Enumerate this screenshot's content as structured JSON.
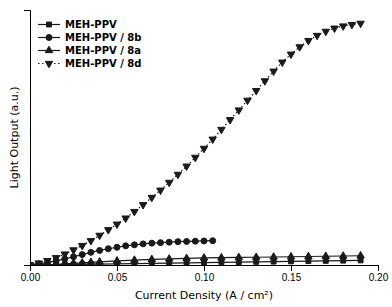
{
  "chart_data": {
    "type": "line",
    "x_label": "Current Density (A / cm²)",
    "y_label": "Light Output (a.u.)",
    "xlim": [
      0.0,
      0.2
    ],
    "xticks": [
      {
        "value": 0.0,
        "label": "0.00"
      },
      0.05,
      {
        "value": 0.1,
        "label": "0.10"
      },
      0.15,
      {
        "value": 0.2,
        "label": "0.20"
      }
    ],
    "ylim": [
      0,
      1.05
    ],
    "tick_labels": "x",
    "legend": "upper left",
    "series": [
      {
        "name": "MEH-PPV",
        "marker": "square",
        "line_style": "solid",
        "color": "#1a1a1a",
        "x": [
          0.0,
          0.005,
          0.01,
          0.015,
          0.02,
          0.025,
          0.03,
          0.035,
          0.04,
          0.05,
          0.06,
          0.07,
          0.08,
          0.09,
          0.1,
          0.11,
          0.12,
          0.13,
          0.14,
          0.15,
          0.16,
          0.17,
          0.18,
          0.19
        ],
        "values": [
          0.0,
          0.0005,
          0.001,
          0.0015,
          0.002,
          0.0025,
          0.003,
          0.0035,
          0.004,
          0.005,
          0.006,
          0.007,
          0.008,
          0.009,
          0.01,
          0.011,
          0.012,
          0.013,
          0.014,
          0.015,
          0.016,
          0.017,
          0.018,
          0.019
        ]
      },
      {
        "name": "MEH-PPV / 8b",
        "marker": "circle",
        "line_style": "solid",
        "color": "#1a1a1a",
        "x": [
          0.0,
          0.005,
          0.01,
          0.015,
          0.02,
          0.025,
          0.03,
          0.035,
          0.04,
          0.045,
          0.05,
          0.055,
          0.06,
          0.065,
          0.07,
          0.075,
          0.08,
          0.085,
          0.09,
          0.095,
          0.1,
          0.105
        ],
        "values": [
          0.0,
          0.004,
          0.01,
          0.017,
          0.025,
          0.034,
          0.043,
          0.052,
          0.06,
          0.067,
          0.073,
          0.079,
          0.083,
          0.087,
          0.09,
          0.092,
          0.094,
          0.096,
          0.097,
          0.098,
          0.099,
          0.1
        ]
      },
      {
        "name": "MEH-PPV / 8a",
        "marker": "triangle-up",
        "line_style": "solid",
        "color": "#1a1a1a",
        "x": [
          0.0,
          0.005,
          0.01,
          0.015,
          0.02,
          0.025,
          0.03,
          0.035,
          0.04,
          0.05,
          0.06,
          0.07,
          0.08,
          0.09,
          0.1,
          0.11,
          0.12,
          0.13,
          0.14,
          0.15,
          0.16,
          0.17,
          0.18,
          0.19
        ],
        "values": [
          0.0,
          0.001,
          0.002,
          0.003,
          0.005,
          0.007,
          0.009,
          0.011,
          0.013,
          0.017,
          0.02,
          0.023,
          0.025,
          0.027,
          0.029,
          0.03,
          0.031,
          0.032,
          0.033,
          0.034,
          0.035,
          0.036,
          0.037,
          0.038
        ]
      },
      {
        "name": "MEH-PPV / 8d",
        "marker": "triangle-down",
        "line_style": "dotted",
        "color": "#1a1a1a",
        "x": [
          0.0,
          0.005,
          0.01,
          0.015,
          0.02,
          0.025,
          0.03,
          0.035,
          0.04,
          0.045,
          0.05,
          0.055,
          0.06,
          0.065,
          0.07,
          0.075,
          0.08,
          0.085,
          0.09,
          0.095,
          0.1,
          0.105,
          0.11,
          0.115,
          0.12,
          0.125,
          0.13,
          0.135,
          0.14,
          0.145,
          0.15,
          0.155,
          0.16,
          0.165,
          0.17,
          0.175,
          0.18,
          0.185,
          0.19
        ],
        "values": [
          0.0,
          0.008,
          0.018,
          0.03,
          0.045,
          0.062,
          0.08,
          0.1,
          0.122,
          0.145,
          0.168,
          0.193,
          0.22,
          0.248,
          0.278,
          0.308,
          0.34,
          0.373,
          0.407,
          0.443,
          0.48,
          0.518,
          0.558,
          0.598,
          0.638,
          0.678,
          0.718,
          0.758,
          0.798,
          0.835,
          0.868,
          0.898,
          0.924,
          0.945,
          0.962,
          0.975,
          0.984,
          0.99,
          0.995
        ]
      }
    ]
  }
}
